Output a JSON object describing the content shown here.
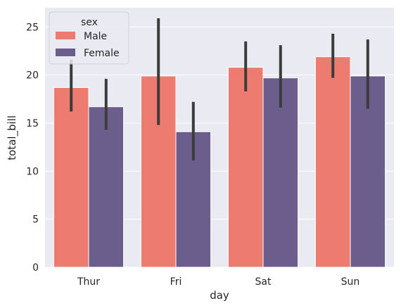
{
  "chart_data": {
    "type": "bar",
    "xlabel": "day",
    "ylabel": "total_bill",
    "categories": [
      "Thur",
      "Fri",
      "Sat",
      "Sun"
    ],
    "ylim": [
      0,
      27
    ],
    "yticks": [
      0,
      5,
      10,
      15,
      20,
      25
    ],
    "grid": true,
    "legend_title": "sex",
    "legend_position": "top-left",
    "series": [
      {
        "name": "Male",
        "color": "#ee7b6f",
        "values": [
          18.7,
          19.9,
          20.8,
          21.9
        ],
        "ci_low": [
          16.2,
          14.8,
          18.3,
          19.7
        ],
        "ci_high": [
          21.6,
          25.9,
          23.5,
          24.3
        ]
      },
      {
        "name": "Female",
        "color": "#6c5e8c",
        "values": [
          16.7,
          14.1,
          19.7,
          19.9
        ],
        "ci_low": [
          14.3,
          11.1,
          16.6,
          16.5
        ],
        "ci_high": [
          19.6,
          17.2,
          23.1,
          23.7
        ]
      }
    ],
    "background": "#eaeaf2",
    "errorbar_color": "#3c3c3c"
  }
}
